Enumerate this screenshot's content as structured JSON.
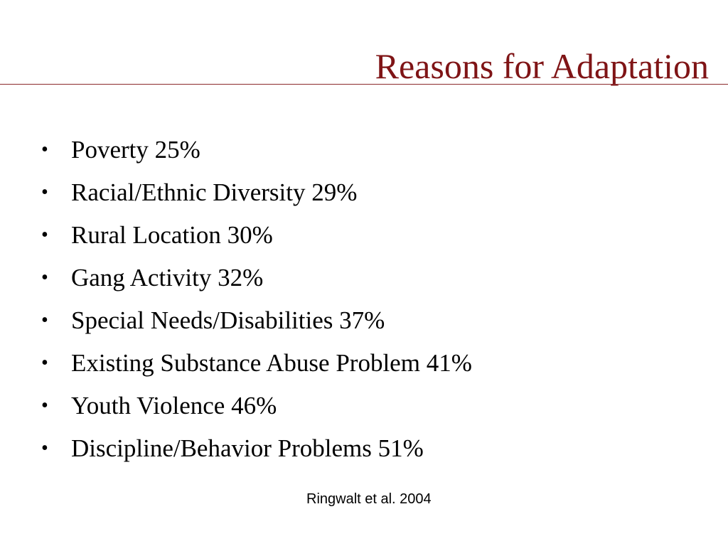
{
  "slide": {
    "title": "Reasons for Adaptation",
    "bullets": [
      "Poverty 25%",
      "Racial/Ethnic Diversity 29%",
      "Rural Location 30%",
      "Gang Activity 32%",
      "Special Needs/Disabilities 37%",
      "Existing Substance Abuse Problem 41%",
      "Youth Violence 46%",
      "Discipline/Behavior Problems 51%"
    ],
    "bullet_symbol": "•",
    "citation": "Ringwalt et al. 2004"
  },
  "colors": {
    "title": "#7f1416",
    "rule": "#8b2a2c",
    "text": "#000000",
    "background": "#ffffff"
  }
}
